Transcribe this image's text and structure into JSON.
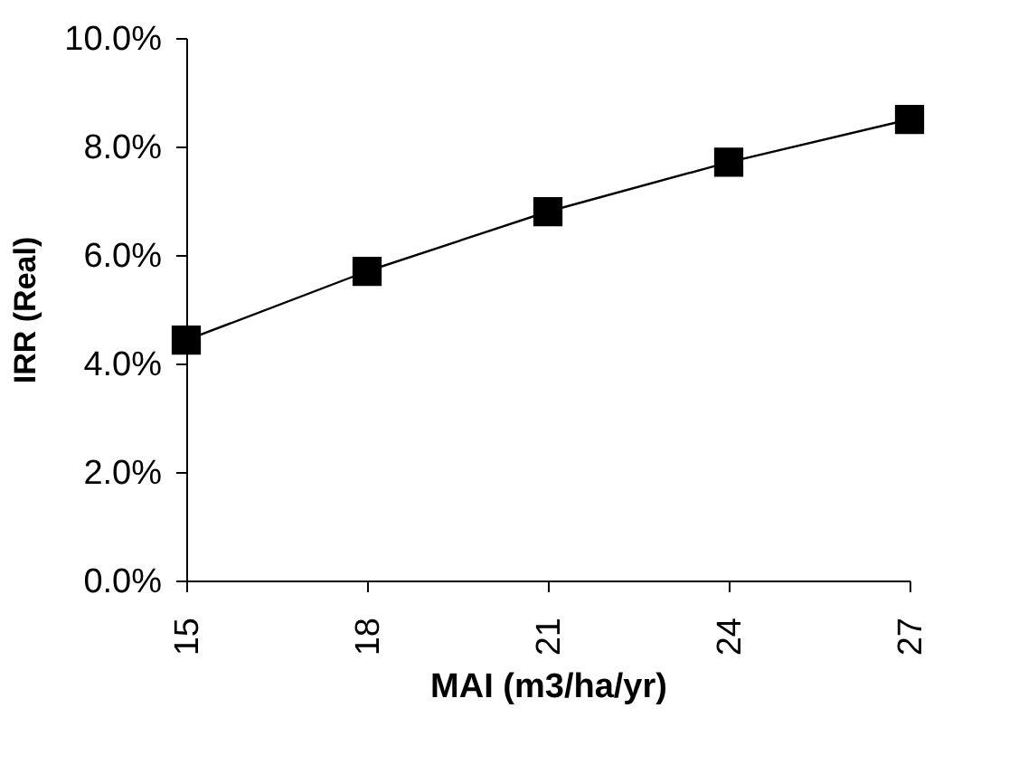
{
  "chart_data": {
    "type": "line",
    "xlabel": "MAI   (m3/ha/yr)",
    "ylabel": "IRR (Real)",
    "x": [
      15,
      18,
      21,
      24,
      27
    ],
    "series": [
      {
        "color": "#000000",
        "values": [
          4.43,
          5.7,
          6.8,
          7.71,
          8.5
        ]
      }
    ],
    "xlim": [
      15,
      27
    ],
    "xticks": [
      15,
      18,
      21,
      24,
      27
    ],
    "ylim": [
      0,
      10
    ],
    "yticks": [
      {
        "value": 0,
        "label": "0.0%"
      },
      {
        "value": 2,
        "label": "2.0%"
      },
      {
        "value": 4,
        "label": "4.0%"
      },
      {
        "value": 6,
        "label": "6.0%"
      },
      {
        "value": 8,
        "label": "8.0%"
      },
      {
        "value": 10,
        "label": "10.0%"
      }
    ],
    "marker": "square",
    "line_style": "solid",
    "grid": false
  }
}
